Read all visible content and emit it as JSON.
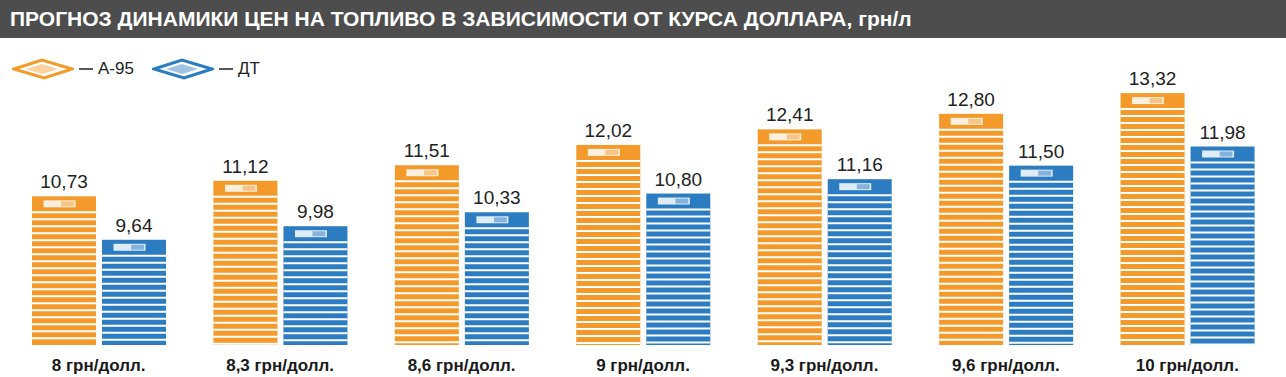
{
  "chart_data": {
    "type": "bar",
    "title": "ПРОГНОЗ ДИНАМИКИ ЦЕН НА ТОПЛИВО В ЗАВИСИМОСТИ ОТ КУРСА ДОЛЛАРА, грн/л",
    "categories": [
      "8 грн/долл.",
      "8,3 грн/долл.",
      "8,6 грн/долл.",
      "9 грн/долл.",
      "9,3 грн/долл.",
      "9,6 грн/долл.",
      "10 грн/долл."
    ],
    "series": [
      {
        "name": "А-95",
        "color": "#f39a2b",
        "values": [
          10.73,
          11.12,
          11.51,
          12.02,
          12.41,
          12.8,
          13.32
        ],
        "value_labels": [
          "10,73",
          "11,12",
          "11,51",
          "12,02",
          "12,41",
          "12,80",
          "13,32"
        ]
      },
      {
        "name": "ДТ",
        "color": "#2b7cc0",
        "values": [
          9.64,
          9.98,
          10.33,
          10.8,
          11.16,
          11.5,
          11.98
        ],
        "value_labels": [
          "9,64",
          "9,98",
          "10,33",
          "10,80",
          "11,16",
          "11,50",
          "11,98"
        ]
      }
    ],
    "ylim": [
      7,
      14
    ],
    "yticks": [
      7,
      14
    ],
    "tick_labels": "x",
    "data_labels": true,
    "legend": "top-left",
    "grid": false
  }
}
